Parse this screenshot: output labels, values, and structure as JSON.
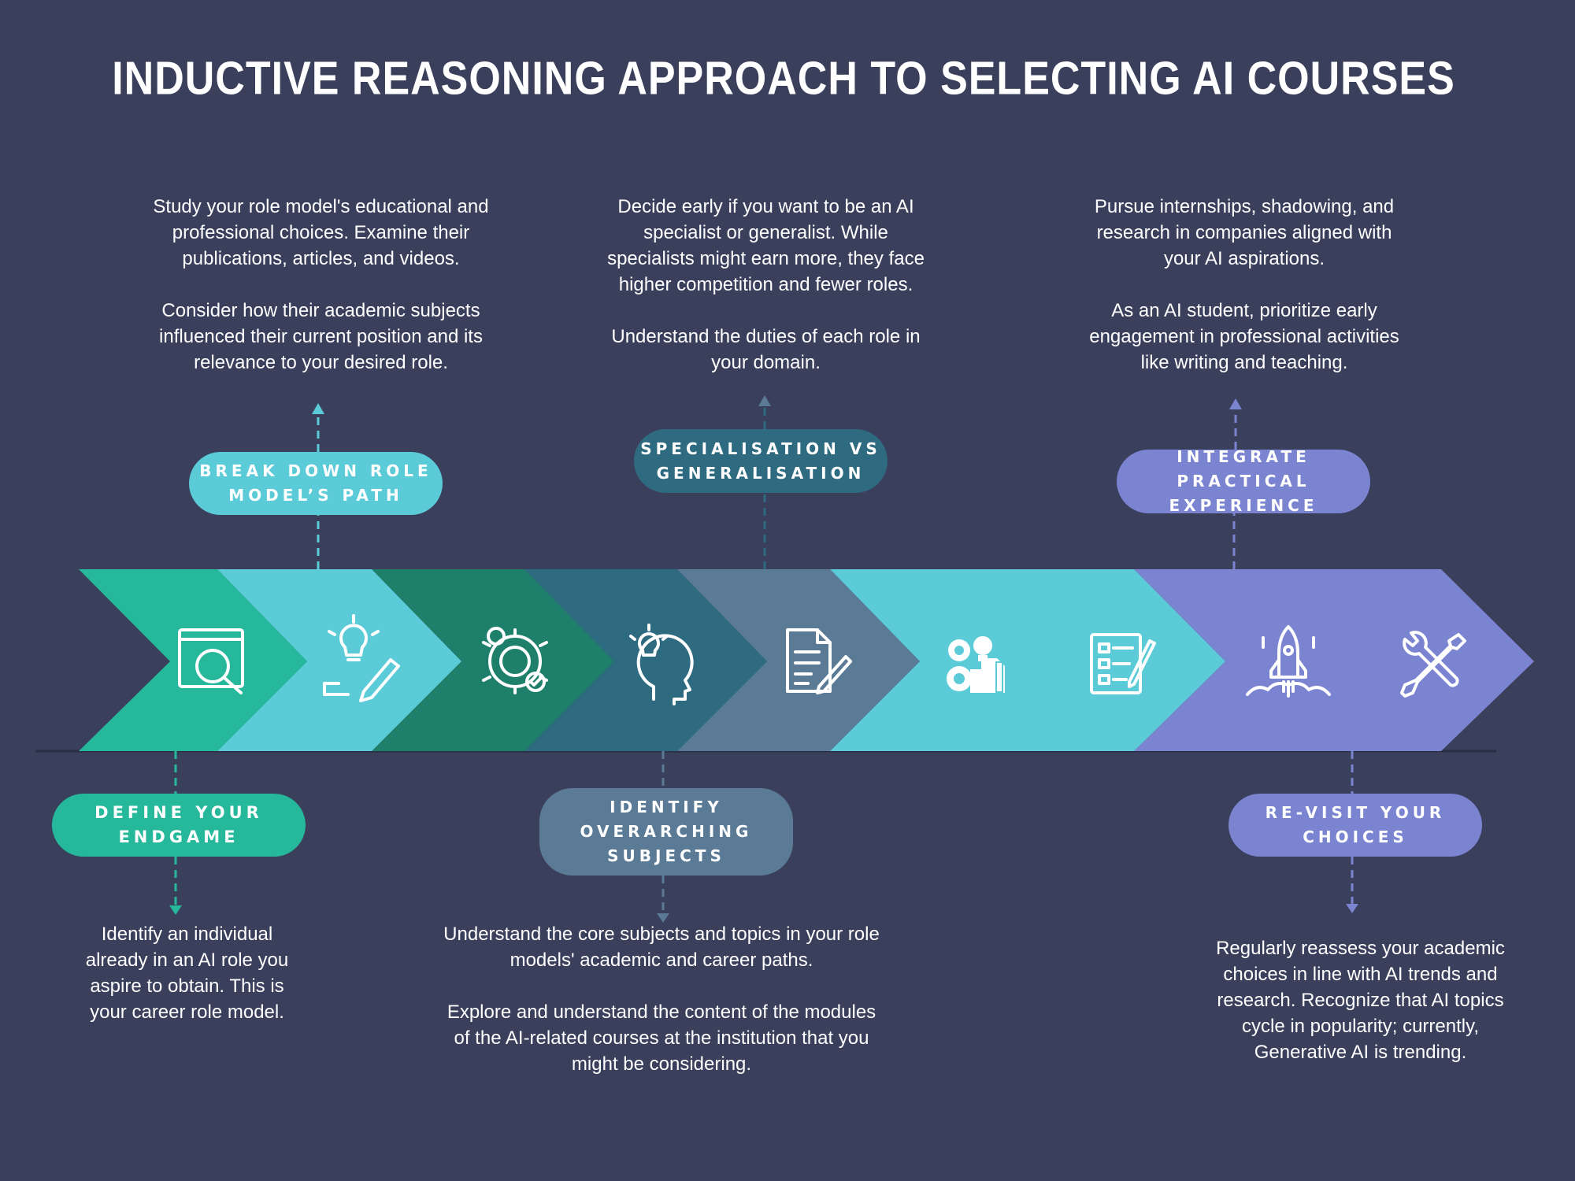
{
  "title": "INDUCTIVE REASONING APPROACH TO SELECTING AI COURSES",
  "colors": {
    "background": "#3a3f5c",
    "green": "#26b89a",
    "cyan": "#5ccbd8",
    "dark_green": "#1e7f6a",
    "dark_teal": "#2f6b80",
    "slate": "#5a7a96",
    "light_cyan": "#5ccbd8",
    "purple": "#7a84d0"
  },
  "steps": [
    {
      "label": "DEFINE YOUR ENDGAME",
      "description": "Identify an individual\nalready in an AI role you\naspire to obtain.  This is\nyour career role model.",
      "icon": "search-window-icon"
    },
    {
      "label": "BREAK DOWN ROLE\nMODEL’S PATH",
      "description": "Study your role model's educational and\nprofessional choices. Examine their\npublications, articles, and videos.\n\nConsider how their academic subjects\ninfluenced their current position and its\nrelevance to your desired role.",
      "icon": "lightbulb-pencil-icon"
    },
    {
      "label": "IDENTIFY\nOVERARCHING\nSUBJECTS",
      "description": "Understand the core subjects and topics in your role\nmodels' academic and career paths.\n\nExplore and understand the content of the modules\nof the AI-related courses at the institution that you\nmight be considering.",
      "icon": "idea-head-icon"
    },
    {
      "label": "SPECIALISATION VS\nGENERALISATION",
      "description": "Decide early if you want to be an AI\nspecialist or generalist. While\nspecialists might earn more, they face\nhigher competition and fewer roles.\n\nUnderstand the duties of each role in\nyour domain.",
      "icon": "document-pen-icon"
    },
    {
      "label": "INTEGRATE PRACTICAL\nEXPERIENCE",
      "description": "Pursue internships, shadowing, and\nresearch in companies aligned with\nyour AI aspirations.\n\nAs an AI student, prioritize early\nengagement in professional activities\nlike writing and teaching.",
      "icon": "rocket-icon"
    },
    {
      "label": "RE-VISIT YOUR\nCHOICES",
      "description": "Regularly reassess your academic\nchoices in line with AI trends and\nresearch. Recognize that AI topics\ncycle in popularity; currently,\nGenerative AI is trending.",
      "icon": "tools-icon"
    }
  ],
  "extra_icons": [
    "gear-check-icon",
    "gears-idea-icon",
    "checklist-icon"
  ]
}
